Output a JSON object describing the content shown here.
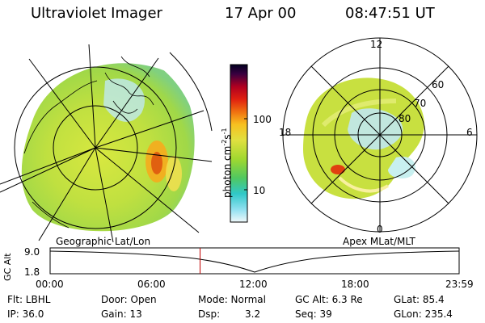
{
  "header": {
    "instrument": "Ultraviolet Imager",
    "date": "17 Apr 00",
    "time": "08:47:51 UT"
  },
  "left_panel": {
    "caption": "Geographic Lat/Lon"
  },
  "right_panel": {
    "caption": "Apex MLat/MLT",
    "lat_labels": [
      "80",
      "70",
      "60"
    ],
    "mlt_labels": [
      "12",
      "18",
      "6",
      "0"
    ]
  },
  "colorbar": {
    "ticks": [
      "100",
      "10"
    ],
    "unit_label": "photon cm",
    "unit_exp1": "-2",
    "unit_s": "s",
    "unit_exp2": "-1",
    "colors": [
      "#000020",
      "#1a0030",
      "#5a0040",
      "#b00020",
      "#e02010",
      "#f05010",
      "#f89010",
      "#f8c020",
      "#e8e040",
      "#c8e030",
      "#90d830",
      "#60d040",
      "#40c880",
      "#30c8c8",
      "#60d8e8",
      "#a0e8f0",
      "#e0f4f8"
    ]
  },
  "timeline": {
    "ylabel": "GC Alt",
    "yticks": [
      "9.0",
      "1.8"
    ],
    "xticks": [
      "00:00",
      "06:00",
      "12:00",
      "18:00",
      "23:59"
    ],
    "marker_hour": 8.8
  },
  "info": {
    "flt": "Flt: LBHL",
    "ip": "IP: 36.0",
    "door": "Door: Open",
    "gain": "Gain: 13",
    "mode": "Mode: Normal",
    "dsp_label": "Dsp:",
    "dsp_value": "3.2",
    "gcalt": "GC Alt: 6.3 Re",
    "seq": "Seq: 39",
    "glat": "GLat: 85.4",
    "glon": "GLon: 235.4"
  }
}
